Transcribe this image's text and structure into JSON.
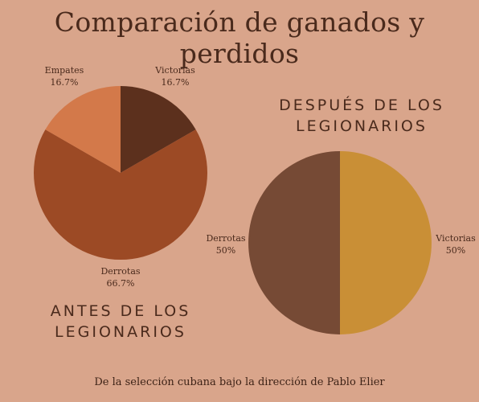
{
  "title": "Comparación de ganados y perdidos",
  "footer": "De la selección cubana bajo la dirección de Pablo Elier",
  "chart_data": [
    {
      "type": "pie",
      "title": "ANTES DE LOS LEGIONARIOS",
      "title_lines": [
        "ANTES DE LOS",
        "LEGIONARIOS"
      ],
      "slices": [
        {
          "label": "Victorias",
          "value": 16.7,
          "display": "16.7%",
          "color": "#5c301d"
        },
        {
          "label": "Derrotas",
          "value": 66.7,
          "display": "66.7%",
          "color": "#9c4a25"
        },
        {
          "label": "Empates",
          "value": 16.7,
          "display": "16.7%",
          "color": "#d3794a"
        }
      ]
    },
    {
      "type": "pie",
      "title": "DESPUÉS DE LOS LEGIONARIOS",
      "title_lines": [
        "DESPUÉS DE LOS",
        "LEGIONARIOS"
      ],
      "slices": [
        {
          "label": "Victorias",
          "value": 50,
          "display": "50%",
          "color": "#c98f36"
        },
        {
          "label": "Derrotas",
          "value": 50,
          "display": "50%",
          "color": "#764a35"
        }
      ]
    }
  ]
}
